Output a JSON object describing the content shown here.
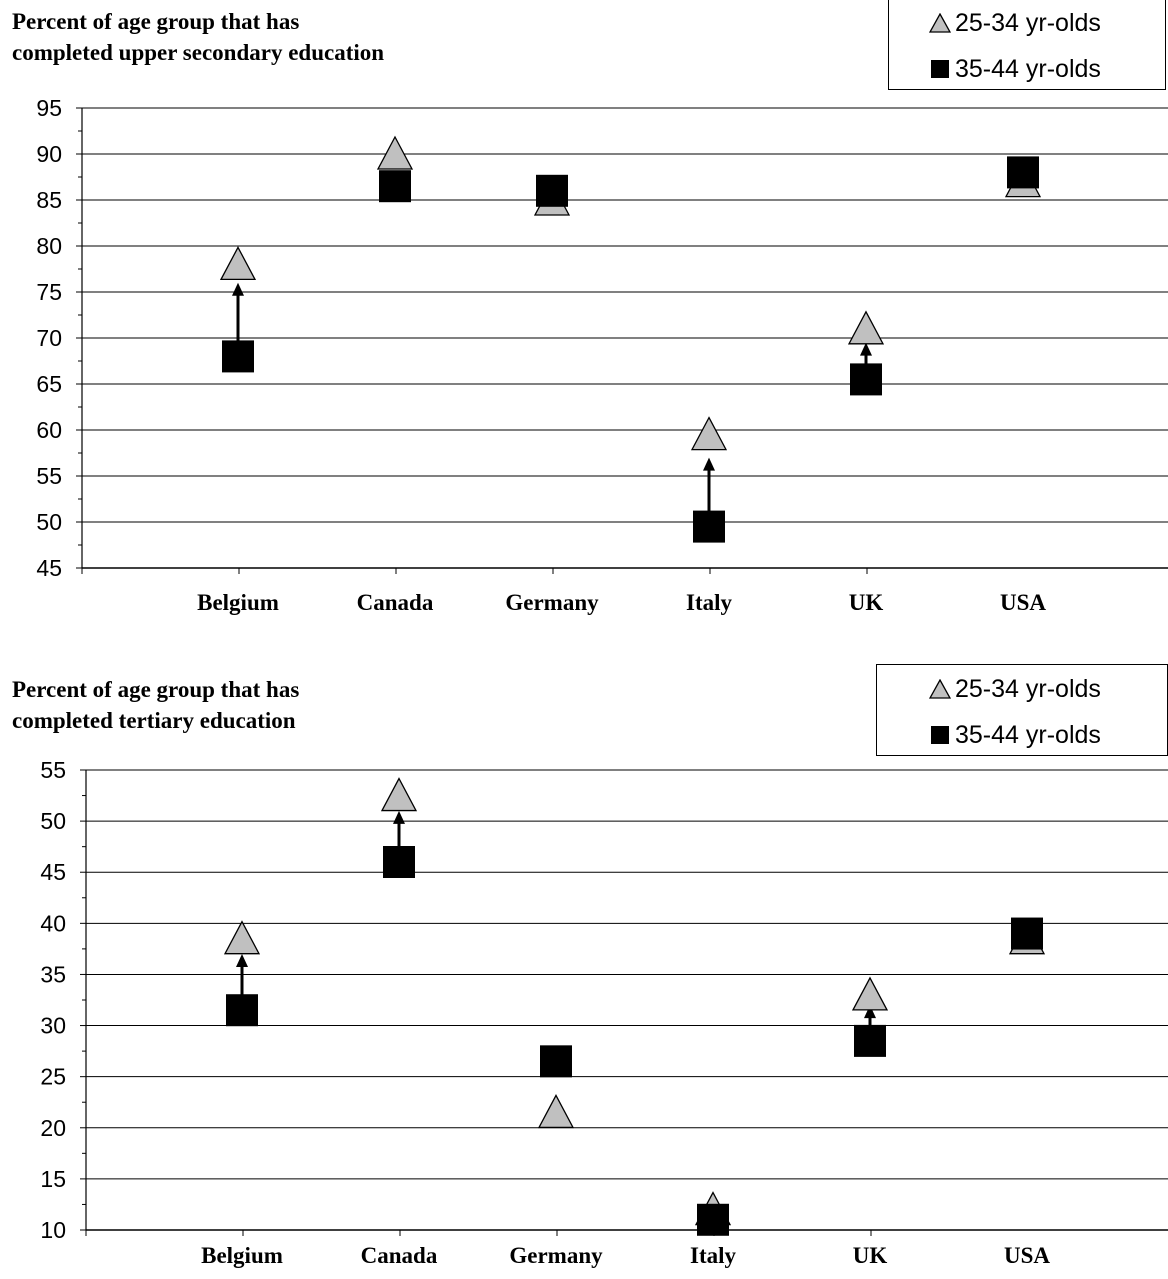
{
  "chart_data": [
    {
      "type": "scatter",
      "title_lines": [
        "Percent of age group that has",
        "completed upper secondary education"
      ],
      "categories": [
        "Belgium",
        "Canada",
        "Germany",
        "Italy",
        "UK",
        "USA"
      ],
      "series": [
        {
          "name": "25-34 yr-olds",
          "marker": "triangle",
          "color": "#c0c0c0",
          "values": [
            78,
            90,
            85,
            59.5,
            71,
            87
          ]
        },
        {
          "name": "35-44 yr-olds",
          "marker": "square",
          "color": "#000000",
          "values": [
            68,
            86.5,
            86,
            49.5,
            65.5,
            88
          ]
        }
      ],
      "arrows": [
        {
          "category": "Belgium",
          "from": 69,
          "to": 76
        },
        {
          "category": "Italy",
          "from": 51,
          "to": 57
        },
        {
          "category": "UK",
          "from": 67,
          "to": 69.5
        }
      ],
      "ylim": [
        45,
        95
      ],
      "yticks": [
        45,
        50,
        55,
        60,
        65,
        70,
        75,
        80,
        85,
        90,
        95
      ],
      "grid": true,
      "legend_position": "top-right"
    },
    {
      "type": "scatter",
      "title_lines": [
        "Percent of age group that has",
        "completed tertiary education"
      ],
      "categories": [
        "Belgium",
        "Canada",
        "Germany",
        "Italy",
        "UK",
        "USA"
      ],
      "series": [
        {
          "name": "25-34 yr-olds",
          "marker": "triangle",
          "color": "#c0c0c0",
          "values": [
            38.5,
            52.5,
            21.5,
            12,
            33,
            38.5
          ]
        },
        {
          "name": "35-44 yr-olds",
          "marker": "square",
          "color": "#000000",
          "values": [
            31.5,
            46,
            26.5,
            11,
            28.5,
            39
          ]
        }
      ],
      "arrows": [
        {
          "category": "Belgium",
          "from": 33,
          "to": 37
        },
        {
          "category": "Canada",
          "from": 47.5,
          "to": 51
        },
        {
          "category": "UK",
          "from": 30,
          "to": 32
        }
      ],
      "ylim": [
        10,
        55
      ],
      "yticks": [
        10,
        15,
        20,
        25,
        30,
        35,
        40,
        45,
        50,
        55
      ],
      "grid": true,
      "legend_position": "top-right"
    }
  ]
}
